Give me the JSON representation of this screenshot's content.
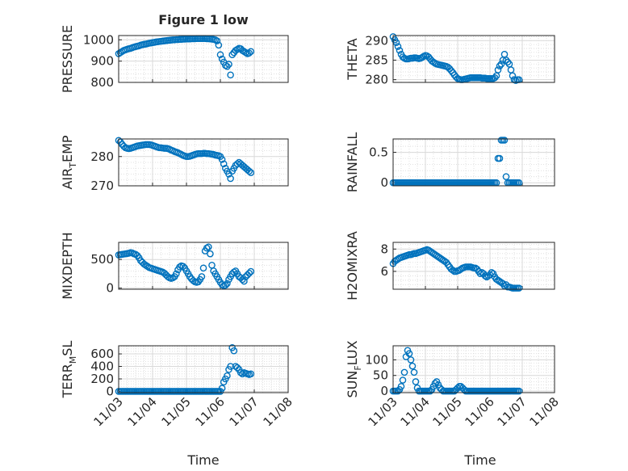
{
  "figure": {
    "title": "Figure 1 low",
    "xlabel": "Time",
    "xticks": [
      "11/03",
      "11/04",
      "11/05",
      "11/06",
      "11/07",
      "11/08"
    ],
    "marker_color": "#0072BD",
    "grid_color": "#d9d9d9"
  },
  "chart_data": [
    {
      "type": "scatter",
      "ylabel_main": "PRESSURE",
      "ylabel_sub": "",
      "ylabel_tail": "",
      "ylim": [
        800,
        1020
      ],
      "yticks": [
        800,
        900,
        1000
      ],
      "ytick_labels": [
        "800",
        "900",
        "1000"
      ],
      "xlim": [
        3,
        8
      ],
      "x": [
        3.0,
        3.05,
        3.1,
        3.15,
        3.2,
        3.25,
        3.3,
        3.35,
        3.4,
        3.45,
        3.5,
        3.55,
        3.6,
        3.65,
        3.7,
        3.75,
        3.8,
        3.85,
        3.9,
        3.95,
        4.0,
        4.05,
        4.1,
        4.15,
        4.2,
        4.25,
        4.3,
        4.35,
        4.4,
        4.45,
        4.5,
        4.55,
        4.6,
        4.65,
        4.7,
        4.75,
        4.8,
        4.85,
        4.9,
        4.95,
        5.0,
        5.05,
        5.1,
        5.15,
        5.2,
        5.25,
        5.3,
        5.35,
        5.4,
        5.45,
        5.5,
        5.55,
        5.6,
        5.65,
        5.7,
        5.75,
        5.8,
        5.85,
        5.9,
        5.95,
        6.0,
        6.05,
        6.1,
        6.15,
        6.2,
        6.25,
        6.3,
        6.35,
        6.4,
        6.45,
        6.5,
        6.55,
        6.6,
        6.65,
        6.7,
        6.75,
        6.8,
        6.85,
        6.9
      ],
      "y": [
        935,
        940,
        945,
        950,
        953,
        956,
        958,
        960,
        963,
        966,
        968,
        970,
        972,
        975,
        977,
        979,
        980,
        982,
        984,
        985,
        987,
        988,
        990,
        991,
        992,
        993,
        994,
        995,
        996,
        997,
        998,
        999,
        1000,
        1000,
        1001,
        1001,
        1002,
        1002,
        1003,
        1003,
        1004,
        1004,
        1004,
        1005,
        1005,
        1005,
        1006,
        1006,
        1006,
        1006,
        1006,
        1006,
        1005,
        1005,
        1004,
        1003,
        1002,
        1000,
        995,
        975,
        930,
        910,
        895,
        880,
        875,
        885,
        835,
        930,
        940,
        950,
        955,
        960,
        958,
        950,
        945,
        940,
        935,
        938,
        945
      ]
    },
    {
      "type": "scatter",
      "ylabel_main": "THETA",
      "ylabel_sub": "",
      "ylabel_tail": "",
      "ylim": [
        279.3,
        291.3
      ],
      "yticks": [
        280,
        285,
        290
      ],
      "ytick_labels": [
        "280",
        "285",
        "290"
      ],
      "xlim": [
        3,
        8
      ],
      "x": [
        3.0,
        3.05,
        3.1,
        3.15,
        3.2,
        3.25,
        3.3,
        3.35,
        3.4,
        3.45,
        3.5,
        3.55,
        3.6,
        3.65,
        3.7,
        3.75,
        3.8,
        3.85,
        3.9,
        3.95,
        4.0,
        4.05,
        4.1,
        4.15,
        4.2,
        4.25,
        4.3,
        4.35,
        4.4,
        4.45,
        4.5,
        4.55,
        4.6,
        4.65,
        4.7,
        4.75,
        4.8,
        4.85,
        4.9,
        4.95,
        5.0,
        5.05,
        5.1,
        5.15,
        5.2,
        5.25,
        5.3,
        5.35,
        5.4,
        5.45,
        5.5,
        5.55,
        5.6,
        5.65,
        5.7,
        5.75,
        5.8,
        5.85,
        5.9,
        5.95,
        6.0,
        6.05,
        6.1,
        6.15,
        6.2,
        6.25,
        6.3,
        6.35,
        6.4,
        6.45,
        6.5,
        6.55,
        6.6,
        6.65,
        6.7,
        6.75,
        6.8,
        6.85,
        6.9
      ],
      "y": [
        291,
        290.2,
        289.5,
        288.5,
        287.5,
        286.5,
        285.8,
        285.5,
        285.3,
        285.3,
        285.4,
        285.5,
        285.5,
        285.6,
        285.6,
        285.5,
        285.4,
        285.5,
        285.7,
        286,
        286.2,
        286.1,
        285.8,
        285.3,
        284.8,
        284.5,
        284.2,
        284,
        283.9,
        283.8,
        283.7,
        283.6,
        283.5,
        283.4,
        283.2,
        282.8,
        282.3,
        281.8,
        281.2,
        280.7,
        280.3,
        280.1,
        280.0,
        280.0,
        280.1,
        280.2,
        280.3,
        280.4,
        280.5,
        280.5,
        280.5,
        280.5,
        280.5,
        280.5,
        280.5,
        280.4,
        280.4,
        280.4,
        280.3,
        280.3,
        280.3,
        280.3,
        280.3,
        280.5,
        281,
        282.5,
        283.5,
        284,
        285,
        286.5,
        285,
        284.5,
        284,
        282.5,
        281,
        280,
        279.8,
        280,
        280
      ]
    },
    {
      "type": "scatter",
      "ylabel_main": "AIR",
      "ylabel_sub": "T",
      "ylabel_tail": "EMP",
      "ylim": [
        270,
        286
      ],
      "yticks": [
        270,
        280
      ],
      "ytick_labels": [
        "270",
        "280"
      ],
      "xlim": [
        3,
        8
      ],
      "x": [
        3.0,
        3.05,
        3.1,
        3.15,
        3.2,
        3.25,
        3.3,
        3.35,
        3.4,
        3.45,
        3.5,
        3.55,
        3.6,
        3.65,
        3.7,
        3.75,
        3.8,
        3.85,
        3.9,
        3.95,
        4.0,
        4.05,
        4.1,
        4.15,
        4.2,
        4.25,
        4.3,
        4.35,
        4.4,
        4.45,
        4.5,
        4.55,
        4.6,
        4.65,
        4.7,
        4.75,
        4.8,
        4.85,
        4.9,
        4.95,
        5.0,
        5.05,
        5.1,
        5.15,
        5.2,
        5.25,
        5.3,
        5.35,
        5.4,
        5.45,
        5.5,
        5.55,
        5.6,
        5.65,
        5.7,
        5.75,
        5.8,
        5.85,
        5.9,
        5.95,
        6.0,
        6.05,
        6.1,
        6.15,
        6.2,
        6.25,
        6.3,
        6.35,
        6.4,
        6.45,
        6.5,
        6.55,
        6.6,
        6.65,
        6.7,
        6.75,
        6.8,
        6.85,
        6.9
      ],
      "y": [
        285.5,
        285,
        284.2,
        283.5,
        283,
        282.8,
        282.7,
        282.8,
        283,
        283.2,
        283.4,
        283.6,
        283.7,
        283.8,
        283.9,
        284,
        284.1,
        284.1,
        284.1,
        284,
        283.8,
        283.6,
        283.4,
        283.2,
        283,
        283,
        282.9,
        282.8,
        282.8,
        282.7,
        282.5,
        282.2,
        282,
        281.7,
        281.5,
        281.3,
        281,
        280.7,
        280.4,
        280.2,
        280,
        280,
        280.1,
        280.3,
        280.5,
        280.7,
        280.9,
        281,
        281,
        281,
        281.1,
        281.1,
        281,
        281,
        280.9,
        280.8,
        280.7,
        280.5,
        280.4,
        280.3,
        280,
        279,
        277.5,
        276,
        275,
        274,
        272.5,
        275,
        276,
        277,
        277.5,
        278,
        277.5,
        277,
        276.5,
        276,
        275.5,
        275,
        274.5
      ]
    },
    {
      "type": "scatter",
      "ylabel_main": "RAINFALL",
      "ylabel_sub": "",
      "ylabel_tail": "",
      "ylim": [
        -0.05,
        0.72
      ],
      "yticks": [
        0,
        0.5
      ],
      "ytick_labels": [
        "0",
        "0.5"
      ],
      "xlim": [
        3,
        8
      ],
      "x": [
        3.0,
        3.05,
        3.1,
        3.15,
        3.2,
        3.25,
        3.3,
        3.35,
        3.4,
        3.45,
        3.5,
        3.55,
        3.6,
        3.65,
        3.7,
        3.75,
        3.8,
        3.85,
        3.9,
        3.95,
        4.0,
        4.05,
        4.1,
        4.15,
        4.2,
        4.25,
        4.3,
        4.35,
        4.4,
        4.45,
        4.5,
        4.55,
        4.6,
        4.65,
        4.7,
        4.75,
        4.8,
        4.85,
        4.9,
        4.95,
        5.0,
        5.05,
        5.1,
        5.15,
        5.2,
        5.25,
        5.3,
        5.35,
        5.4,
        5.45,
        5.5,
        5.55,
        5.6,
        5.65,
        5.7,
        5.75,
        5.8,
        5.85,
        5.9,
        5.95,
        6.0,
        6.05,
        6.1,
        6.15,
        6.2,
        6.25,
        6.3,
        6.35,
        6.4,
        6.45,
        6.5,
        6.55,
        6.6,
        6.65,
        6.7,
        6.75,
        6.8,
        6.85,
        6.9
      ],
      "y": [
        0,
        0,
        0,
        0,
        0,
        0,
        0,
        0,
        0,
        0,
        0,
        0,
        0,
        0,
        0,
        0,
        0,
        0,
        0,
        0,
        0,
        0,
        0,
        0,
        0,
        0,
        0,
        0,
        0,
        0,
        0,
        0,
        0,
        0,
        0,
        0,
        0,
        0,
        0,
        0,
        0,
        0,
        0,
        0,
        0,
        0,
        0,
        0,
        0,
        0,
        0,
        0,
        0,
        0,
        0,
        0,
        0,
        0,
        0,
        0,
        0,
        0,
        0,
        0,
        0,
        0.4,
        0.4,
        0.7,
        0.7,
        0.7,
        0.1,
        0,
        0,
        0,
        0,
        0,
        0,
        0,
        0
      ]
    },
    {
      "type": "scatter",
      "ylabel_main": "MIXDEPTH",
      "ylabel_sub": "",
      "ylabel_tail": "",
      "ylim": [
        -20,
        800
      ],
      "yticks": [
        0,
        500
      ],
      "ytick_labels": [
        "0",
        "500"
      ],
      "xlim": [
        3,
        8
      ],
      "x": [
        3.0,
        3.05,
        3.1,
        3.15,
        3.2,
        3.25,
        3.3,
        3.35,
        3.4,
        3.45,
        3.5,
        3.55,
        3.6,
        3.65,
        3.7,
        3.75,
        3.8,
        3.85,
        3.9,
        3.95,
        4.0,
        4.05,
        4.1,
        4.15,
        4.2,
        4.25,
        4.3,
        4.35,
        4.4,
        4.45,
        4.5,
        4.55,
        4.6,
        4.65,
        4.7,
        4.75,
        4.8,
        4.85,
        4.9,
        4.95,
        5.0,
        5.05,
        5.1,
        5.15,
        5.2,
        5.25,
        5.3,
        5.35,
        5.4,
        5.45,
        5.5,
        5.55,
        5.6,
        5.65,
        5.7,
        5.75,
        5.8,
        5.85,
        5.9,
        5.95,
        6.0,
        6.05,
        6.1,
        6.15,
        6.2,
        6.25,
        6.3,
        6.35,
        6.4,
        6.45,
        6.5,
        6.55,
        6.6,
        6.65,
        6.7,
        6.75,
        6.8,
        6.85,
        6.9
      ],
      "y": [
        580,
        585,
        590,
        595,
        600,
        605,
        610,
        620,
        615,
        600,
        590,
        570,
        530,
        480,
        450,
        420,
        400,
        380,
        360,
        350,
        340,
        330,
        320,
        310,
        300,
        290,
        280,
        260,
        230,
        200,
        180,
        170,
        180,
        200,
        250,
        320,
        370,
        390,
        380,
        350,
        300,
        250,
        200,
        160,
        130,
        110,
        100,
        110,
        150,
        200,
        350,
        650,
        700,
        720,
        600,
        400,
        300,
        250,
        200,
        150,
        100,
        60,
        40,
        50,
        80,
        150,
        200,
        250,
        280,
        300,
        250,
        200,
        180,
        150,
        120,
        200,
        230,
        260,
        290
      ]
    },
    {
      "type": "scatter",
      "ylabel_main": "H2OMIXRA",
      "ylabel_sub": "",
      "ylabel_tail": "",
      "ylim": [
        4.4,
        8.6
      ],
      "yticks": [
        6,
        8
      ],
      "ytick_labels": [
        "6",
        "8"
      ],
      "xlim": [
        3,
        8
      ],
      "x": [
        3.0,
        3.05,
        3.1,
        3.15,
        3.2,
        3.25,
        3.3,
        3.35,
        3.4,
        3.45,
        3.5,
        3.55,
        3.6,
        3.65,
        3.7,
        3.75,
        3.8,
        3.85,
        3.9,
        3.95,
        4.0,
        4.05,
        4.1,
        4.15,
        4.2,
        4.25,
        4.3,
        4.35,
        4.4,
        4.45,
        4.5,
        4.55,
        4.6,
        4.65,
        4.7,
        4.75,
        4.8,
        4.85,
        4.9,
        4.95,
        5.0,
        5.05,
        5.1,
        5.15,
        5.2,
        5.25,
        5.3,
        5.35,
        5.4,
        5.45,
        5.5,
        5.55,
        5.6,
        5.65,
        5.7,
        5.75,
        5.8,
        5.85,
        5.9,
        5.95,
        6.0,
        6.05,
        6.1,
        6.15,
        6.2,
        6.25,
        6.3,
        6.35,
        6.4,
        6.45,
        6.5,
        6.55,
        6.6,
        6.65,
        6.7,
        6.75,
        6.8,
        6.85,
        6.9
      ],
      "y": [
        6.7,
        6.9,
        7.0,
        7.1,
        7.2,
        7.25,
        7.3,
        7.35,
        7.4,
        7.45,
        7.5,
        7.5,
        7.55,
        7.6,
        7.6,
        7.65,
        7.7,
        7.75,
        7.8,
        7.85,
        7.9,
        7.95,
        7.9,
        7.8,
        7.7,
        7.6,
        7.5,
        7.4,
        7.3,
        7.2,
        7.1,
        7.0,
        6.9,
        6.8,
        6.6,
        6.4,
        6.2,
        6.1,
        6.0,
        6.0,
        6.05,
        6.1,
        6.2,
        6.3,
        6.35,
        6.4,
        6.4,
        6.4,
        6.4,
        6.35,
        6.3,
        6.3,
        6.2,
        6.0,
        5.8,
        5.9,
        5.8,
        5.6,
        5.5,
        5.6,
        5.7,
        5.9,
        5.8,
        5.5,
        5.3,
        5.2,
        5.1,
        5.0,
        4.9,
        4.7,
        4.8,
        4.6,
        4.6,
        4.55,
        4.5,
        4.5,
        4.5,
        4.5,
        4.5
      ]
    },
    {
      "type": "scatter",
      "ylabel_main": "TERR",
      "ylabel_sub": "M",
      "ylabel_tail": "SL",
      "ylim": [
        -20,
        730
      ],
      "yticks": [
        0,
        200,
        400,
        600
      ],
      "ytick_labels": [
        "0",
        "200",
        "400",
        "600"
      ],
      "xlim": [
        3,
        8
      ],
      "x": [
        3.0,
        3.05,
        3.1,
        3.15,
        3.2,
        3.25,
        3.3,
        3.35,
        3.4,
        3.45,
        3.5,
        3.55,
        3.6,
        3.65,
        3.7,
        3.75,
        3.8,
        3.85,
        3.9,
        3.95,
        4.0,
        4.05,
        4.1,
        4.15,
        4.2,
        4.25,
        4.3,
        4.35,
        4.4,
        4.45,
        4.5,
        4.55,
        4.6,
        4.65,
        4.7,
        4.75,
        4.8,
        4.85,
        4.9,
        4.95,
        5.0,
        5.05,
        5.1,
        5.15,
        5.2,
        5.25,
        5.3,
        5.35,
        5.4,
        5.45,
        5.5,
        5.55,
        5.6,
        5.65,
        5.7,
        5.75,
        5.8,
        5.85,
        5.9,
        5.95,
        6.0,
        6.05,
        6.1,
        6.15,
        6.2,
        6.25,
        6.3,
        6.35,
        6.4,
        6.45,
        6.5,
        6.55,
        6.6,
        6.65,
        6.7,
        6.75,
        6.8,
        6.85,
        6.9
      ],
      "y": [
        0,
        0,
        0,
        0,
        0,
        0,
        0,
        0,
        0,
        0,
        0,
        0,
        0,
        0,
        0,
        0,
        0,
        0,
        0,
        0,
        0,
        0,
        0,
        0,
        0,
        0,
        0,
        0,
        0,
        0,
        0,
        0,
        0,
        0,
        0,
        0,
        0,
        0,
        0,
        0,
        0,
        0,
        0,
        0,
        0,
        0,
        0,
        0,
        0,
        0,
        0,
        0,
        0,
        0,
        0,
        0,
        0,
        0,
        0,
        0,
        0,
        50,
        150,
        200,
        250,
        350,
        400,
        700,
        650,
        400,
        380,
        350,
        300,
        280,
        300,
        290,
        280,
        270,
        280
      ]
    },
    {
      "type": "scatter",
      "ylabel_main": "SUN",
      "ylabel_sub": "F",
      "ylabel_tail": "LUX",
      "ylim": [
        -5,
        145
      ],
      "yticks": [
        0,
        50,
        100
      ],
      "ytick_labels": [
        "0",
        "50",
        "100"
      ],
      "xlim": [
        3,
        8
      ],
      "x": [
        3.0,
        3.05,
        3.1,
        3.15,
        3.2,
        3.25,
        3.3,
        3.35,
        3.4,
        3.45,
        3.5,
        3.55,
        3.6,
        3.65,
        3.7,
        3.75,
        3.8,
        3.85,
        3.9,
        3.95,
        4.0,
        4.05,
        4.1,
        4.15,
        4.2,
        4.25,
        4.3,
        4.35,
        4.4,
        4.45,
        4.5,
        4.55,
        4.6,
        4.65,
        4.7,
        4.75,
        4.8,
        4.85,
        4.9,
        4.95,
        5.0,
        5.05,
        5.1,
        5.15,
        5.2,
        5.25,
        5.3,
        5.35,
        5.4,
        5.45,
        5.5,
        5.55,
        5.6,
        5.65,
        5.7,
        5.75,
        5.8,
        5.85,
        5.9,
        5.95,
        6.0,
        6.05,
        6.1,
        6.15,
        6.2,
        6.25,
        6.3,
        6.35,
        6.4,
        6.45,
        6.5,
        6.55,
        6.6,
        6.65,
        6.7,
        6.75,
        6.8,
        6.85,
        6.9
      ],
      "y": [
        0,
        0,
        0,
        0,
        5,
        15,
        35,
        60,
        110,
        130,
        120,
        100,
        80,
        60,
        30,
        10,
        0,
        0,
        0,
        0,
        0,
        0,
        0,
        0,
        5,
        15,
        25,
        30,
        20,
        10,
        5,
        0,
        0,
        0,
        0,
        0,
        0,
        0,
        0,
        5,
        10,
        15,
        15,
        10,
        5,
        0,
        0,
        0,
        0,
        0,
        0,
        0,
        0,
        0,
        0,
        0,
        0,
        0,
        0,
        0,
        0,
        0,
        0,
        0,
        0,
        0,
        0,
        0,
        0,
        0,
        0,
        0,
        0,
        0,
        0,
        0,
        0,
        0,
        0
      ]
    }
  ]
}
